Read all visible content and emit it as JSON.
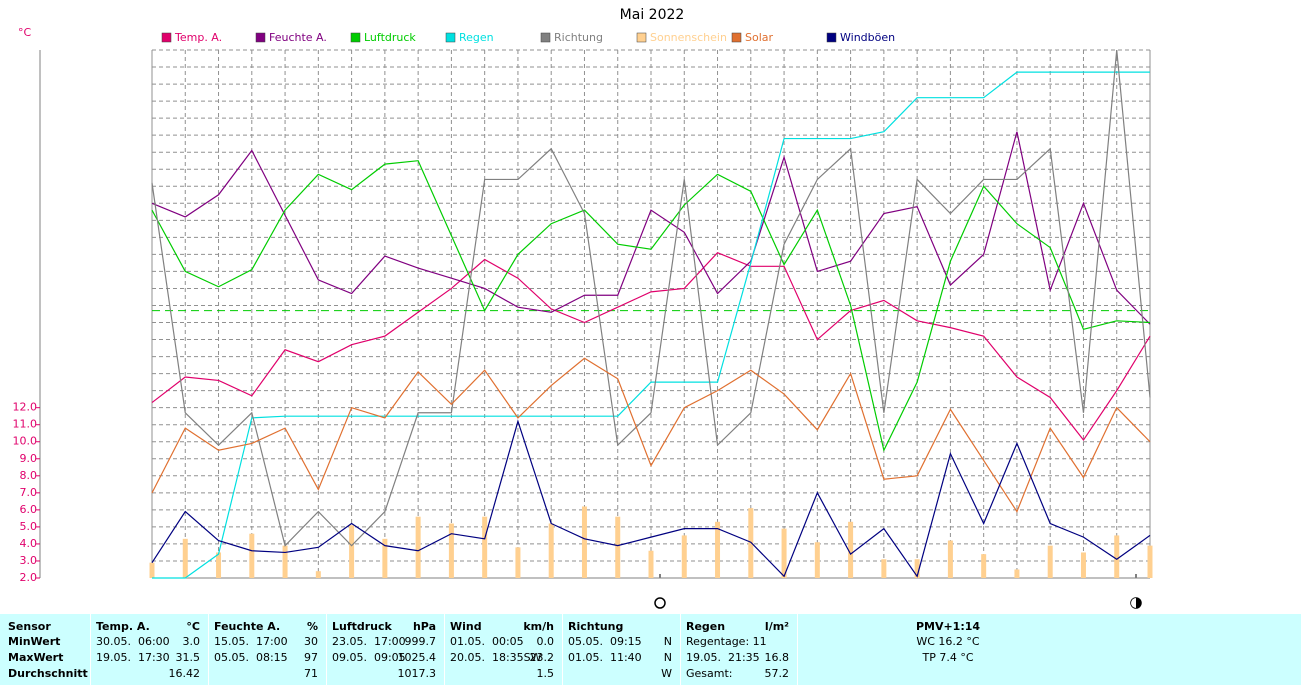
{
  "chart_data": {
    "type": "line",
    "title": "Mai 2022",
    "y_unit": "°C",
    "categories": [
      null,
      null,
      null,
      null,
      null,
      null,
      null,
      null,
      null,
      null,
      null,
      null,
      null,
      null,
      null,
      null,
      null,
      null,
      null,
      null,
      null,
      null,
      null,
      null,
      null,
      null,
      null,
      null,
      null,
      null,
      null
    ],
    "ylim": [
      2,
      33
    ],
    "yticks": [
      {
        "value": 2,
        "label": "2.0"
      },
      {
        "value": 3,
        "label": "3.0"
      },
      {
        "value": 4,
        "label": "4.0"
      },
      {
        "value": 5,
        "label": "5.0"
      },
      {
        "value": 6,
        "label": "6.0"
      },
      {
        "value": 7,
        "label": "7.0"
      },
      {
        "value": 8,
        "label": "8.0"
      },
      {
        "value": 9,
        "label": "9.0"
      },
      {
        "value": 10,
        "label": "10.0"
      },
      {
        "value": 11,
        "label": "11.0"
      },
      {
        "value": 12,
        "label": "12.0"
      }
    ],
    "tick_color": "#e0006b",
    "grid": true,
    "reference_line": {
      "value": 17.7,
      "color": "#00cc00"
    },
    "series": [
      {
        "name": "Temp. A.",
        "color": "#e0006b",
        "values": [
          12.3,
          13.8,
          13.6,
          12.7,
          15.4,
          14.7,
          15.7,
          16.2,
          17.6,
          19.0,
          20.7,
          19.6,
          17.8,
          17.0,
          17.9,
          18.8,
          19.0,
          21.1,
          20.3,
          20.3,
          16.0,
          17.7,
          18.3,
          17.1,
          16.7,
          16.2,
          13.8,
          12.6,
          10.1,
          13.0,
          16.2
        ]
      },
      {
        "name": "Feuchte A.",
        "color": "#800080",
        "values": [
          24.0,
          23.2,
          24.5,
          27.1,
          23.3,
          19.5,
          18.7,
          20.9,
          20.2,
          19.6,
          19.0,
          17.9,
          17.6,
          18.6,
          18.6,
          23.6,
          22.3,
          18.7,
          20.6,
          26.7,
          20.0,
          20.6,
          23.4,
          23.8,
          19.2,
          21.0,
          28.2,
          18.9,
          24.0,
          18.9,
          16.9
        ]
      },
      {
        "name": "Luftdruck",
        "color": "#00cc00",
        "values": [
          23.6,
          20.0,
          19.1,
          20.1,
          23.6,
          25.7,
          24.8,
          26.3,
          26.5,
          22.1,
          17.7,
          21.0,
          22.8,
          23.6,
          21.6,
          21.3,
          23.9,
          25.7,
          24.7,
          20.4,
          23.6,
          18.0,
          9.5,
          13.5,
          20.6,
          25.0,
          22.8,
          21.4,
          16.6,
          17.1,
          17.0
        ]
      },
      {
        "name": "Regen",
        "color": "#00e0e0",
        "values": [
          2.0,
          2.0,
          3.4,
          11.4,
          11.5,
          11.5,
          11.5,
          11.5,
          11.5,
          11.5,
          11.5,
          11.5,
          11.5,
          11.5,
          11.5,
          13.5,
          13.5,
          13.5,
          20.5,
          27.8,
          27.8,
          27.8,
          28.2,
          30.2,
          30.2,
          30.2,
          31.7,
          31.7,
          31.7,
          31.7,
          31.7
        ]
      },
      {
        "name": "Richtung",
        "color": "#808080",
        "values": [
          25.2,
          11.7,
          9.8,
          11.7,
          3.9,
          5.9,
          3.9,
          5.9,
          11.7,
          11.7,
          25.4,
          25.4,
          27.2,
          23.4,
          9.8,
          11.7,
          25.4,
          9.8,
          11.7,
          21.6,
          25.4,
          27.2,
          11.7,
          25.4,
          23.4,
          25.4,
          25.4,
          27.2,
          11.7,
          33.0,
          12.6
        ]
      },
      {
        "name": "Sonnenschein",
        "color": "#ffd090",
        "kind": "bar",
        "values": [
          2.9,
          4.3,
          3.5,
          4.6,
          3.9,
          2.4,
          5.1,
          4.3,
          5.6,
          5.2,
          5.6,
          3.8,
          5.2,
          6.2,
          5.6,
          3.6,
          4.5,
          5.3,
          6.1,
          4.9,
          4.1,
          5.3,
          3.1,
          3.1,
          4.2,
          3.4,
          2.5,
          3.9,
          3.5,
          4.5,
          3.9
        ]
      },
      {
        "name": "Solar",
        "color": "#e07030",
        "values": [
          7.0,
          10.8,
          9.5,
          9.9,
          10.8,
          7.2,
          12.0,
          11.4,
          14.1,
          12.2,
          14.2,
          11.4,
          13.3,
          14.9,
          13.7,
          8.6,
          12.0,
          13.0,
          14.2,
          12.8,
          10.7,
          14.0,
          7.8,
          8.0,
          11.9,
          8.9,
          5.9,
          10.8,
          7.9,
          12.0,
          10.0
        ]
      },
      {
        "name": "Windböen",
        "color": "#000080",
        "values": [
          2.9,
          5.9,
          4.2,
          3.6,
          3.5,
          3.8,
          5.2,
          3.9,
          3.6,
          4.6,
          4.3,
          11.2,
          5.2,
          4.3,
          3.9,
          4.4,
          4.9,
          4.9,
          4.1,
          2.1,
          7.0,
          3.4,
          4.9,
          2.1,
          9.3,
          5.2,
          9.9,
          5.2,
          4.4,
          3.1,
          4.5
        ]
      }
    ]
  },
  "table": {
    "columns": [
      {
        "name": "Sensor"
      },
      {
        "name": "Temp. A.",
        "unit": "°C"
      },
      {
        "name": "Feuchte A.",
        "unit": "%"
      },
      {
        "name": "Luftdruck",
        "unit": "hPa"
      },
      {
        "name": "Wind",
        "unit": "km/h"
      },
      {
        "name": "Richtung"
      },
      {
        "name": "Regen",
        "unit": "l/m²"
      }
    ],
    "rows": [
      {
        "label": "MinWert",
        "cells": [
          {
            "time": "30.05.  06:00",
            "value": "3.0"
          },
          {
            "time": "15.05.  17:00",
            "value": "30"
          },
          {
            "time": "23.05.  17:00",
            "value": "999.7"
          },
          {
            "time": "01.05.  00:05",
            "value": "0.0"
          },
          {
            "time": "05.05.  09:15",
            "value": "N"
          },
          {
            "time": "Regentage: 11"
          }
        ]
      },
      {
        "label": "MaxWert",
        "cells": [
          {
            "time": "19.05.  17:30",
            "value": "31.5"
          },
          {
            "time": "05.05.  08:15",
            "value": "97"
          },
          {
            "time": "09.05.  09:05",
            "value": "1025.4"
          },
          {
            "time": "20.05.  18:35SW",
            "value": "23.2"
          },
          {
            "time": "01.05.  11:40",
            "value": "N"
          },
          {
            "time": "19.05.  21:35",
            "value": "16.8"
          }
        ]
      },
      {
        "label": "Durchschnitt",
        "cells": [
          {
            "value": "16.42"
          },
          {
            "value": "71"
          },
          {
            "value": "1017.3"
          },
          {
            "value": "1.5"
          },
          {
            "value": "W"
          },
          {
            "time": "Gesamt:",
            "value": "57.2"
          }
        ]
      }
    ],
    "pmv": {
      "title": "PMV+1:14",
      "lines": [
        "WC 16.2 °C",
        "TP 7.4 °C"
      ]
    }
  }
}
